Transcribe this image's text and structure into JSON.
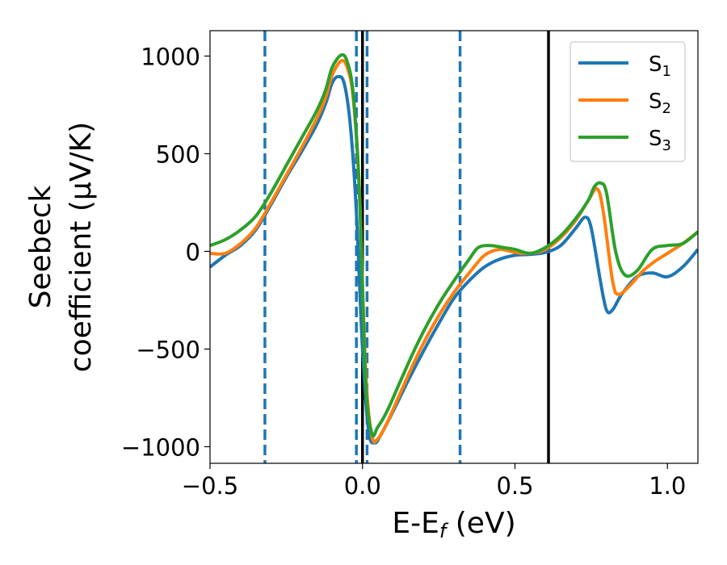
{
  "chart_data": {
    "type": "line",
    "xlabel": "E-E_f (eV)",
    "ylabel_line1": "Seebeck",
    "ylabel_line2": "coefficient (μV/K)",
    "xlim": [
      -0.5,
      1.1
    ],
    "ylim": [
      -1085,
      1130
    ],
    "x_ticks": [
      -0.5,
      0.0,
      0.5,
      1.0
    ],
    "x_tick_labels": [
      "−0.5",
      "0.0",
      "0.5",
      "1.0"
    ],
    "y_ticks": [
      -1000,
      -500,
      0,
      500,
      1000
    ],
    "y_tick_labels": [
      "−1000",
      "−500",
      "0",
      "500",
      "1000"
    ],
    "grid": false,
    "legend": {
      "position": "top-right",
      "entries": [
        {
          "base": "S",
          "sub": "1",
          "color": "#1f77b4"
        },
        {
          "base": "S",
          "sub": "2",
          "color": "#ff7f0e"
        },
        {
          "base": "S",
          "sub": "3",
          "color": "#2ca02c"
        }
      ]
    },
    "vlines": [
      {
        "x": -0.32,
        "style": "dashed",
        "color": "#1f77b4"
      },
      {
        "x": -0.02,
        "style": "dashed",
        "color": "#1f77b4"
      },
      {
        "x": 0.015,
        "style": "dashed",
        "color": "#1f77b4"
      },
      {
        "x": 0.32,
        "style": "dashed",
        "color": "#1f77b4"
      },
      {
        "x": 0.0,
        "style": "solid",
        "color": "#000000"
      },
      {
        "x": 0.61,
        "style": "solid",
        "color": "#000000"
      }
    ],
    "series": [
      {
        "name": "S1",
        "color": "#1f77b4",
        "points": [
          [
            -0.5,
            -80
          ],
          [
            -0.45,
            -20
          ],
          [
            -0.4,
            30
          ],
          [
            -0.35,
            110
          ],
          [
            -0.3,
            240
          ],
          [
            -0.25,
            380
          ],
          [
            -0.2,
            510
          ],
          [
            -0.15,
            650
          ],
          [
            -0.12,
            760
          ],
          [
            -0.1,
            860
          ],
          [
            -0.08,
            895
          ],
          [
            -0.06,
            860
          ],
          [
            -0.04,
            650
          ],
          [
            -0.02,
            200
          ],
          [
            0.0,
            -500
          ],
          [
            0.02,
            -920
          ],
          [
            0.04,
            -980
          ],
          [
            0.06,
            -940
          ],
          [
            0.1,
            -820
          ],
          [
            0.15,
            -660
          ],
          [
            0.2,
            -510
          ],
          [
            0.25,
            -370
          ],
          [
            0.3,
            -240
          ],
          [
            0.35,
            -150
          ],
          [
            0.4,
            -80
          ],
          [
            0.45,
            -40
          ],
          [
            0.5,
            -20
          ],
          [
            0.55,
            -15
          ],
          [
            0.6,
            -5
          ],
          [
            0.65,
            30
          ],
          [
            0.7,
            120
          ],
          [
            0.73,
            175
          ],
          [
            0.75,
            120
          ],
          [
            0.78,
            -150
          ],
          [
            0.8,
            -300
          ],
          [
            0.82,
            -300
          ],
          [
            0.85,
            -220
          ],
          [
            0.9,
            -130
          ],
          [
            0.95,
            -110
          ],
          [
            1.0,
            -130
          ],
          [
            1.05,
            -80
          ],
          [
            1.1,
            10
          ]
        ]
      },
      {
        "name": "S2",
        "color": "#ff7f0e",
        "points": [
          [
            -0.5,
            -10
          ],
          [
            -0.45,
            -10
          ],
          [
            -0.4,
            40
          ],
          [
            -0.35,
            120
          ],
          [
            -0.3,
            250
          ],
          [
            -0.25,
            390
          ],
          [
            -0.2,
            530
          ],
          [
            -0.15,
            680
          ],
          [
            -0.12,
            790
          ],
          [
            -0.1,
            900
          ],
          [
            -0.07,
            975
          ],
          [
            -0.05,
            940
          ],
          [
            -0.03,
            780
          ],
          [
            -0.01,
            300
          ],
          [
            0.01,
            -600
          ],
          [
            0.03,
            -940
          ],
          [
            0.05,
            -960
          ],
          [
            0.08,
            -880
          ],
          [
            0.12,
            -740
          ],
          [
            0.16,
            -600
          ],
          [
            0.2,
            -470
          ],
          [
            0.25,
            -330
          ],
          [
            0.3,
            -210
          ],
          [
            0.35,
            -110
          ],
          [
            0.4,
            -20
          ],
          [
            0.45,
            10
          ],
          [
            0.5,
            -5
          ],
          [
            0.55,
            -10
          ],
          [
            0.6,
            10
          ],
          [
            0.65,
            70
          ],
          [
            0.7,
            160
          ],
          [
            0.74,
            260
          ],
          [
            0.77,
            320
          ],
          [
            0.79,
            200
          ],
          [
            0.82,
            -150
          ],
          [
            0.84,
            -220
          ],
          [
            0.88,
            -170
          ],
          [
            0.92,
            -100
          ],
          [
            0.96,
            -50
          ],
          [
            1.0,
            -10
          ],
          [
            1.05,
            40
          ],
          [
            1.1,
            100
          ]
        ]
      },
      {
        "name": "S3",
        "color": "#2ca02c",
        "points": [
          [
            -0.5,
            30
          ],
          [
            -0.45,
            60
          ],
          [
            -0.4,
            110
          ],
          [
            -0.35,
            180
          ],
          [
            -0.3,
            300
          ],
          [
            -0.25,
            440
          ],
          [
            -0.2,
            580
          ],
          [
            -0.15,
            720
          ],
          [
            -0.12,
            830
          ],
          [
            -0.1,
            940
          ],
          [
            -0.07,
            1005
          ],
          [
            -0.05,
            970
          ],
          [
            -0.03,
            800
          ],
          [
            -0.01,
            300
          ],
          [
            0.01,
            -650
          ],
          [
            0.03,
            -930
          ],
          [
            0.05,
            -900
          ],
          [
            0.08,
            -820
          ],
          [
            0.12,
            -680
          ],
          [
            0.16,
            -540
          ],
          [
            0.2,
            -410
          ],
          [
            0.25,
            -270
          ],
          [
            0.3,
            -150
          ],
          [
            0.35,
            -40
          ],
          [
            0.38,
            20
          ],
          [
            0.42,
            30
          ],
          [
            0.46,
            20
          ],
          [
            0.5,
            10
          ],
          [
            0.55,
            -10
          ],
          [
            0.6,
            20
          ],
          [
            0.65,
            80
          ],
          [
            0.7,
            170
          ],
          [
            0.74,
            260
          ],
          [
            0.76,
            330
          ],
          [
            0.78,
            350
          ],
          [
            0.8,
            300
          ],
          [
            0.83,
            0
          ],
          [
            0.86,
            -120
          ],
          [
            0.9,
            -100
          ],
          [
            0.95,
            10
          ],
          [
            1.0,
            30
          ],
          [
            1.05,
            40
          ],
          [
            1.1,
            100
          ]
        ]
      }
    ]
  }
}
